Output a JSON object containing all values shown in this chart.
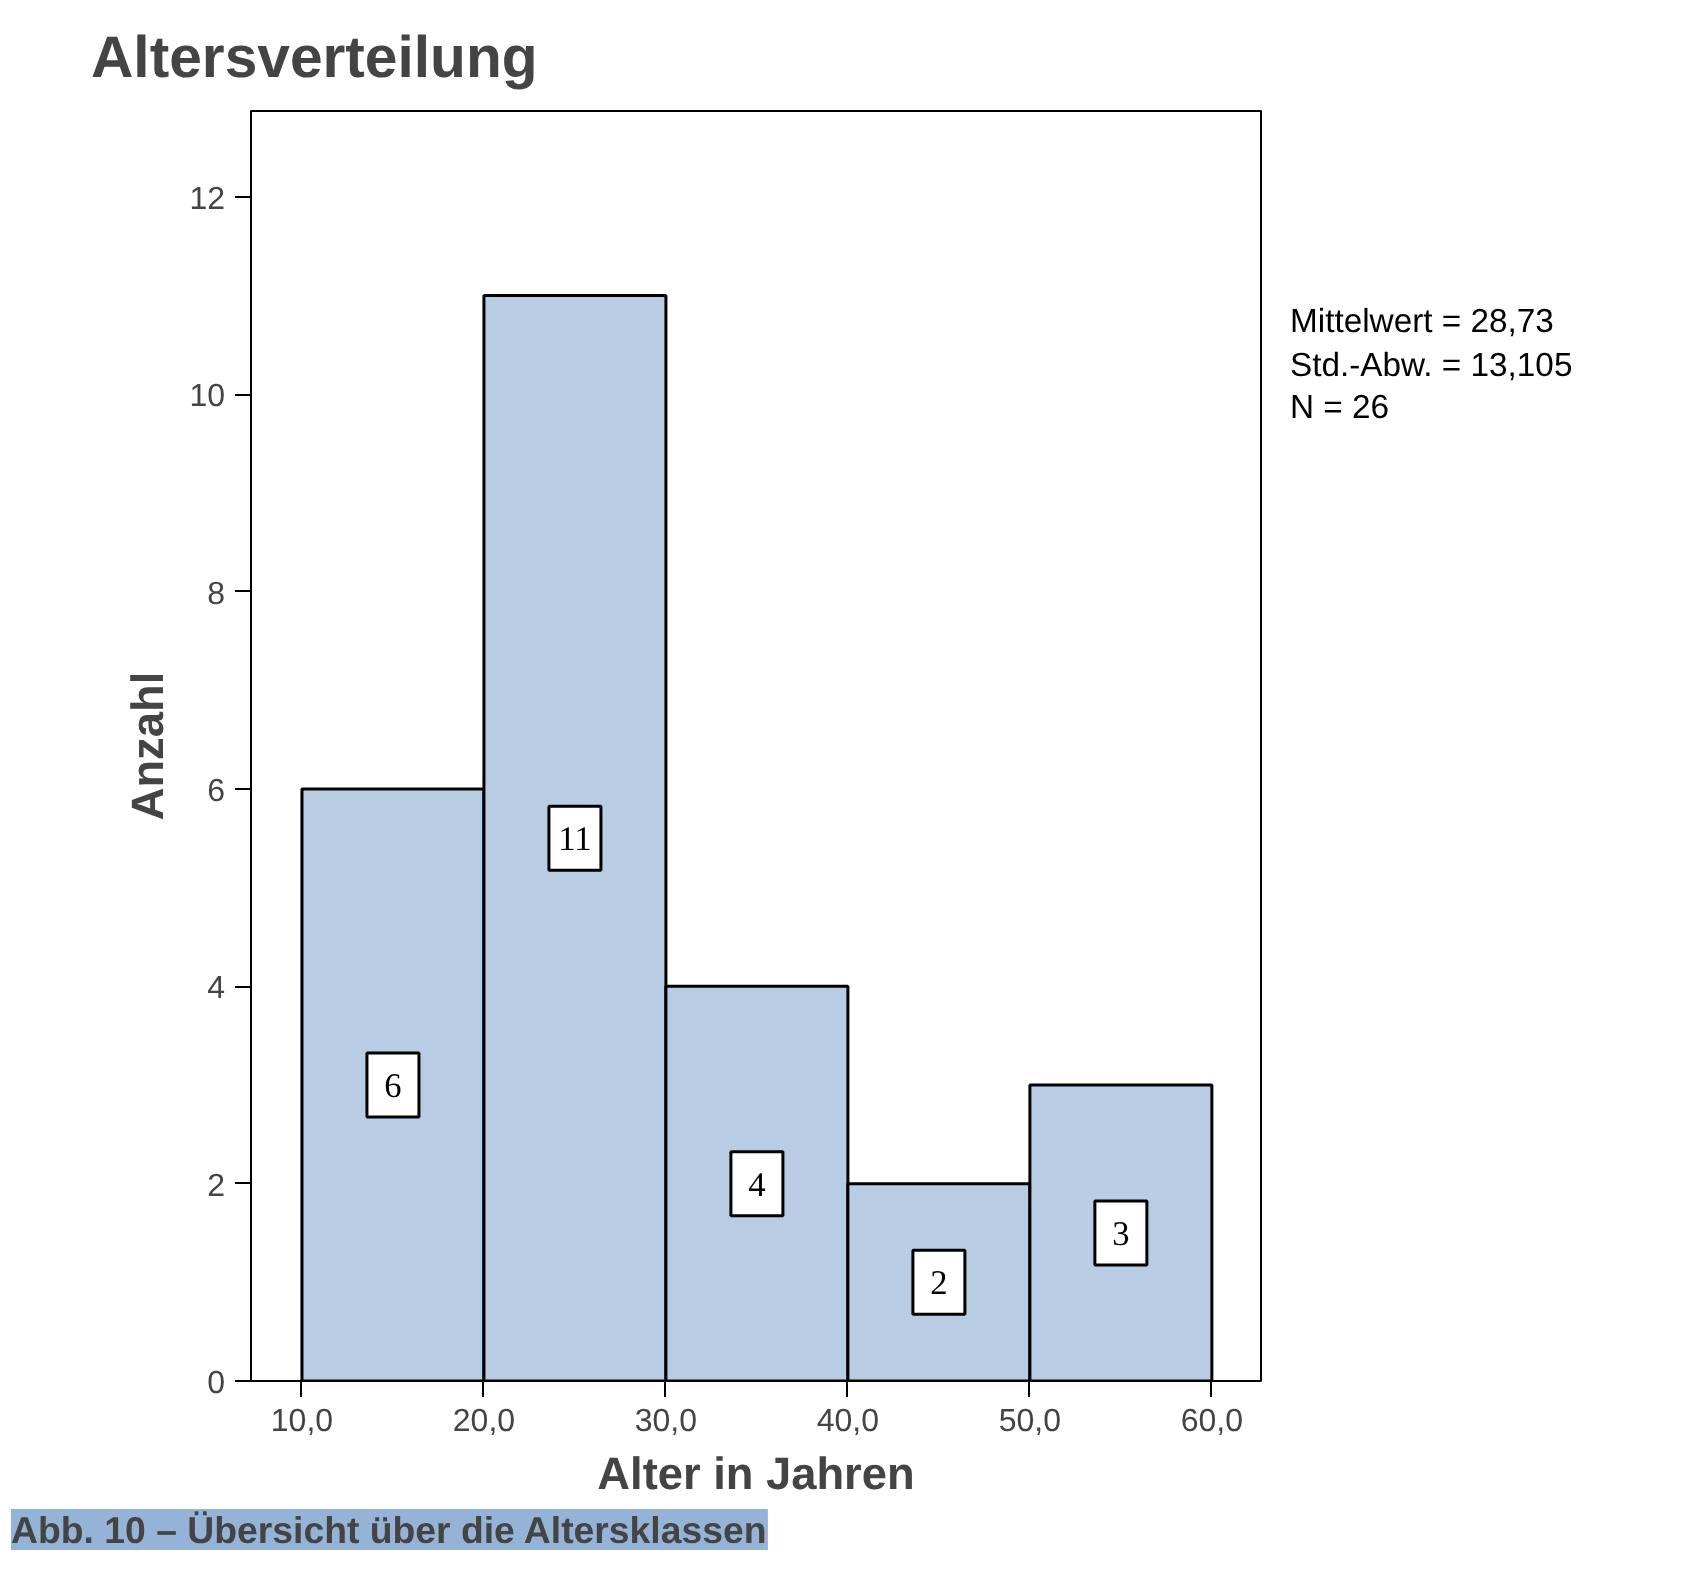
{
  "chart_data": {
    "type": "histogram",
    "title": "Altersverteilung",
    "xlabel": "Alter in Jahren",
    "ylabel": "Anzahl",
    "bins": [
      10,
      20,
      30,
      40,
      50,
      60
    ],
    "values": [
      6,
      11,
      4,
      2,
      3
    ],
    "color": "#b8cce4",
    "data_labels": true,
    "xlim": [
      7.2,
      62.7
    ],
    "ylim": [
      0,
      12.87
    ],
    "xticks": [
      {
        "value": 10,
        "label": "10,0"
      },
      {
        "value": 20,
        "label": "20,0"
      },
      {
        "value": 30,
        "label": "30,0"
      },
      {
        "value": 40,
        "label": "40,0"
      },
      {
        "value": 50,
        "label": "50,0"
      },
      {
        "value": 60,
        "label": "60,0"
      }
    ],
    "yticks": [
      0,
      2,
      4,
      6,
      8,
      10,
      12
    ],
    "grid": false,
    "annotations": [
      "Mittelwert = 28,73",
      "Std.-Abw. = 13,105",
      "N = 26",
      "Abb. 10 – Übersicht über die Altersklassen"
    ]
  }
}
